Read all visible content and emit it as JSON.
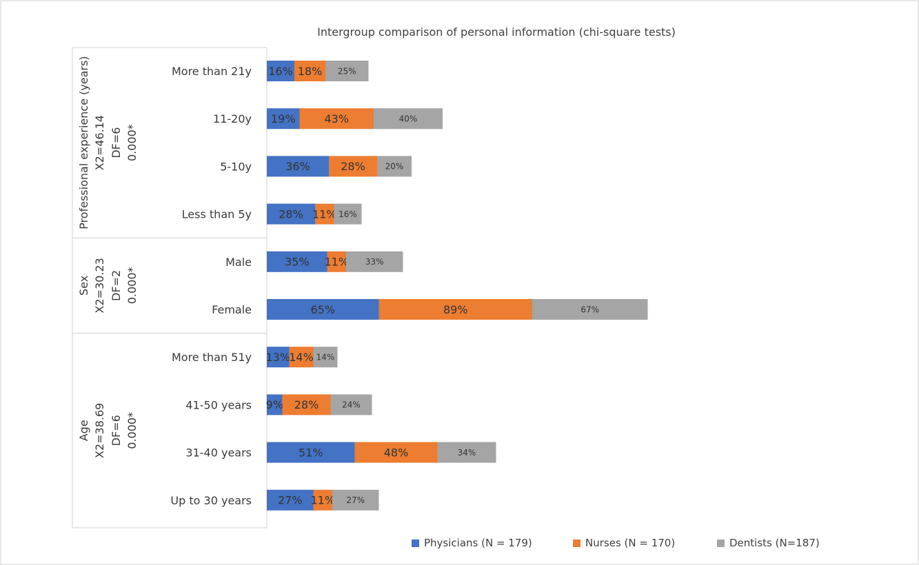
{
  "chart_data": {
    "type": "bar",
    "orientation": "horizontal",
    "stacked": true,
    "title": "Intergroup comparison of personal information (chi-square tests)",
    "legend_position": "bottom-right",
    "colors": {
      "Physicians": "#4472c4",
      "Nurses": "#ed7d31",
      "Dentists": "#a5a5a5"
    },
    "groups": [
      {
        "lines": [
          "Professional experience (years)",
          "X2=46.14",
          "DF=6",
          "0.000*"
        ],
        "categories": [
          "More than 21y",
          "11-20y",
          "5-10y",
          "Less than 5y"
        ]
      },
      {
        "lines": [
          "Sex",
          "X2=30.23",
          "DF=2",
          "0.000*"
        ],
        "categories": [
          "Male",
          "Female"
        ]
      },
      {
        "lines": [
          "Age",
          "X2=38.69",
          "DF=6",
          "0.000*"
        ],
        "categories": [
          "More than 51y",
          "41-50 years",
          "31-40 years",
          "Up to 30 years"
        ]
      }
    ],
    "categories": [
      "More than 21y",
      "11-20y",
      "5-10y",
      "Less than 5y",
      "Male",
      "Female",
      "More than 51y",
      "41-50 years",
      "31-40 years",
      "Up to 30 years"
    ],
    "series": [
      {
        "name": "Physicians (N = 179)",
        "key": "Physicians",
        "values": [
          16,
          19,
          36,
          28,
          35,
          65,
          13,
          9,
          51,
          27
        ],
        "labels": [
          "16%",
          "19%",
          "36%",
          "28%",
          "35%",
          "65%",
          "13%",
          "9%",
          "51%",
          "27%"
        ]
      },
      {
        "name": "Nurses (N = 170)",
        "key": "Nurses",
        "values": [
          18,
          43,
          28,
          11,
          11,
          89,
          14,
          28,
          48,
          11
        ],
        "labels": [
          "18%",
          "43%",
          "28%",
          "11%",
          "11%",
          "89%",
          "14%",
          "28%",
          "48%",
          "11%"
        ]
      },
      {
        "name": "Dentists (N=187)",
        "key": "Dentists",
        "values": [
          25,
          40,
          20,
          16,
          33,
          67,
          14,
          24,
          34,
          27
        ],
        "labels": [
          "25%",
          "40%",
          "20%",
          "16%",
          "33%",
          "67%",
          "14%",
          "24%",
          "34%",
          "27%"
        ]
      }
    ]
  }
}
